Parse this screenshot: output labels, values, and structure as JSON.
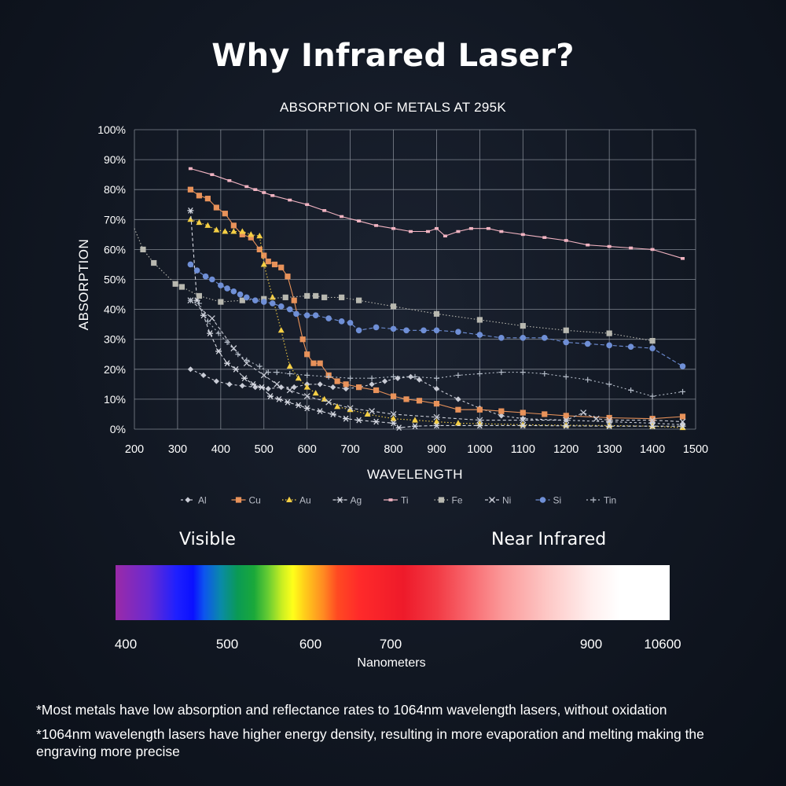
{
  "headline": "Why Infrared Laser?",
  "chart_data": {
    "type": "line",
    "title": "ABSORPTION OF METALS AT 295K",
    "xlabel": "WAVELENGTH",
    "ylabel": "ABSORPTION",
    "xlim": [
      200,
      1500
    ],
    "ylim": [
      0,
      100
    ],
    "xticks": [
      "200",
      "300",
      "400",
      "500",
      "600",
      "700",
      "800",
      "900",
      "1000",
      "1100",
      "1200",
      "1300",
      "1400",
      "1500"
    ],
    "yticks": [
      "0%",
      "10%",
      "20%",
      "30%",
      "40%",
      "50%",
      "60%",
      "70%",
      "80%",
      "90%",
      "100%"
    ],
    "grid": true,
    "legend_position": "bottom",
    "series": [
      {
        "name": "Al",
        "color": "#c9ccd6",
        "marker": "diamond",
        "dash": "3,3",
        "points": [
          [
            330,
            20
          ],
          [
            360,
            18
          ],
          [
            390,
            16
          ],
          [
            420,
            15
          ],
          [
            450,
            14.5
          ],
          [
            480,
            14
          ],
          [
            510,
            13.5
          ],
          [
            540,
            14
          ],
          [
            570,
            14
          ],
          [
            600,
            15
          ],
          [
            630,
            15
          ],
          [
            660,
            14
          ],
          [
            690,
            13.5
          ],
          [
            720,
            14
          ],
          [
            750,
            15
          ],
          [
            780,
            16
          ],
          [
            810,
            17
          ],
          [
            840,
            17.5
          ],
          [
            860,
            16.5
          ],
          [
            900,
            13.5
          ],
          [
            950,
            10
          ],
          [
            1000,
            7
          ],
          [
            1050,
            4.5
          ],
          [
            1100,
            3.5
          ],
          [
            1200,
            3
          ],
          [
            1300,
            2.5
          ],
          [
            1400,
            2
          ],
          [
            1470,
            1.5
          ]
        ]
      },
      {
        "name": "Cu",
        "color": "#e8925a",
        "marker": "square",
        "dash": "",
        "points": [
          [
            330,
            80
          ],
          [
            350,
            78
          ],
          [
            370,
            77
          ],
          [
            390,
            74
          ],
          [
            410,
            72
          ],
          [
            430,
            68
          ],
          [
            450,
            65
          ],
          [
            470,
            64
          ],
          [
            490,
            60
          ],
          [
            500,
            58
          ],
          [
            510,
            56
          ],
          [
            525,
            55
          ],
          [
            540,
            54
          ],
          [
            555,
            51
          ],
          [
            570,
            43
          ],
          [
            590,
            30
          ],
          [
            600,
            25
          ],
          [
            615,
            22
          ],
          [
            630,
            22
          ],
          [
            650,
            18
          ],
          [
            670,
            16
          ],
          [
            690,
            15
          ],
          [
            720,
            14
          ],
          [
            760,
            13
          ],
          [
            800,
            11
          ],
          [
            830,
            10
          ],
          [
            860,
            9.5
          ],
          [
            900,
            8.5
          ],
          [
            950,
            6.5
          ],
          [
            1000,
            6.5
          ],
          [
            1050,
            6
          ],
          [
            1100,
            5.5
          ],
          [
            1150,
            5
          ],
          [
            1200,
            4.5
          ],
          [
            1300,
            3.8
          ],
          [
            1400,
            3.5
          ],
          [
            1470,
            4.2
          ]
        ]
      },
      {
        "name": "Au",
        "color": "#f5cf45",
        "marker": "triangle",
        "dash": "1.5,2.5",
        "points": [
          [
            330,
            70
          ],
          [
            350,
            69
          ],
          [
            370,
            68
          ],
          [
            390,
            66.5
          ],
          [
            410,
            66
          ],
          [
            430,
            66
          ],
          [
            450,
            66
          ],
          [
            470,
            65
          ],
          [
            490,
            64.5
          ],
          [
            500,
            55
          ],
          [
            520,
            44
          ],
          [
            540,
            33
          ],
          [
            560,
            21
          ],
          [
            580,
            17
          ],
          [
            600,
            14
          ],
          [
            620,
            12
          ],
          [
            640,
            10
          ],
          [
            670,
            7.5
          ],
          [
            700,
            6.5
          ],
          [
            740,
            5
          ],
          [
            800,
            3.5
          ],
          [
            850,
            3
          ],
          [
            900,
            2.5
          ],
          [
            950,
            2
          ],
          [
            1000,
            1.8
          ],
          [
            1100,
            1.5
          ],
          [
            1200,
            1.3
          ],
          [
            1300,
            1.2
          ],
          [
            1400,
            1
          ],
          [
            1470,
            0.5
          ]
        ]
      },
      {
        "name": "Ag",
        "color": "#d6d9e2",
        "marker": "asterisk",
        "dash": "4,3",
        "points": [
          [
            330,
            73
          ],
          [
            345,
            43
          ],
          [
            360,
            38
          ],
          [
            375,
            32
          ],
          [
            395,
            26
          ],
          [
            415,
            22
          ],
          [
            435,
            20
          ],
          [
            455,
            17
          ],
          [
            475,
            15
          ],
          [
            495,
            14
          ],
          [
            515,
            11
          ],
          [
            535,
            10
          ],
          [
            555,
            9
          ],
          [
            580,
            8
          ],
          [
            600,
            7
          ],
          [
            630,
            6
          ],
          [
            660,
            5
          ],
          [
            690,
            3.5
          ],
          [
            720,
            3
          ],
          [
            760,
            2.5
          ],
          [
            800,
            2
          ],
          [
            813,
            0.5
          ],
          [
            850,
            1
          ],
          [
            900,
            1.2
          ],
          [
            1000,
            1.2
          ],
          [
            1100,
            1.2
          ],
          [
            1200,
            1.1
          ],
          [
            1300,
            1
          ],
          [
            1400,
            1
          ],
          [
            1470,
            1
          ]
        ]
      },
      {
        "name": "Ti",
        "color": "#f2b4c2",
        "marker": "smallsquare",
        "dash": "",
        "points": [
          [
            330,
            87
          ],
          [
            380,
            85
          ],
          [
            420,
            83
          ],
          [
            460,
            81
          ],
          [
            480,
            80
          ],
          [
            500,
            79
          ],
          [
            520,
            78
          ],
          [
            560,
            76.5
          ],
          [
            600,
            75
          ],
          [
            640,
            73
          ],
          [
            680,
            71
          ],
          [
            720,
            69.5
          ],
          [
            760,
            68
          ],
          [
            800,
            67
          ],
          [
            840,
            66
          ],
          [
            880,
            66
          ],
          [
            900,
            67
          ],
          [
            920,
            64.5
          ],
          [
            950,
            66
          ],
          [
            980,
            67
          ],
          [
            1020,
            67
          ],
          [
            1050,
            66
          ],
          [
            1100,
            65
          ],
          [
            1150,
            64
          ],
          [
            1200,
            63
          ],
          [
            1250,
            61.5
          ],
          [
            1300,
            61
          ],
          [
            1350,
            60.5
          ],
          [
            1400,
            60
          ],
          [
            1470,
            57
          ]
        ]
      },
      {
        "name": "Fe",
        "color": "#b8b8b0",
        "marker": "square",
        "dash": "1.5,2.5",
        "points": [
          [
            200,
            67
          ],
          [
            220,
            60
          ],
          [
            245,
            55.5
          ],
          [
            295,
            48.5
          ],
          [
            310,
            47.5
          ],
          [
            350,
            44.5
          ],
          [
            400,
            42.5
          ],
          [
            450,
            43
          ],
          [
            500,
            43.5
          ],
          [
            550,
            44
          ],
          [
            600,
            44.5
          ],
          [
            620,
            44.5
          ],
          [
            640,
            44
          ],
          [
            680,
            44
          ],
          [
            720,
            43
          ],
          [
            800,
            41
          ],
          [
            900,
            38.5
          ],
          [
            1000,
            36.5
          ],
          [
            1100,
            34.5
          ],
          [
            1200,
            33
          ],
          [
            1300,
            32
          ],
          [
            1400,
            29.5
          ]
        ]
      },
      {
        "name": "Ni",
        "color": "#c9ccd6",
        "marker": "cross",
        "dash": "4,3",
        "points": [
          [
            330,
            43
          ],
          [
            380,
            37
          ],
          [
            430,
            27
          ],
          [
            460,
            22
          ],
          [
            500,
            18
          ],
          [
            530,
            15
          ],
          [
            560,
            13
          ],
          [
            600,
            11
          ],
          [
            650,
            9
          ],
          [
            700,
            7
          ],
          [
            750,
            6
          ],
          [
            800,
            5
          ],
          [
            900,
            4
          ],
          [
            1000,
            3
          ],
          [
            1100,
            3
          ],
          [
            1200,
            3
          ],
          [
            1240,
            5.5
          ],
          [
            1270,
            3.5
          ],
          [
            1300,
            3
          ],
          [
            1400,
            3
          ],
          [
            1470,
            2.5
          ]
        ]
      },
      {
        "name": "Si",
        "color": "#6f8fd6",
        "marker": "circle",
        "dash": "5,3",
        "points": [
          [
            330,
            55
          ],
          [
            345,
            53
          ],
          [
            365,
            51
          ],
          [
            380,
            50
          ],
          [
            400,
            48
          ],
          [
            415,
            47
          ],
          [
            430,
            46
          ],
          [
            445,
            45
          ],
          [
            460,
            44
          ],
          [
            480,
            43
          ],
          [
            500,
            42.5
          ],
          [
            520,
            42
          ],
          [
            540,
            41
          ],
          [
            560,
            40
          ],
          [
            575,
            38.5
          ],
          [
            600,
            38
          ],
          [
            620,
            38
          ],
          [
            650,
            37
          ],
          [
            680,
            36
          ],
          [
            700,
            35.5
          ],
          [
            720,
            33
          ],
          [
            760,
            34
          ],
          [
            800,
            33.5
          ],
          [
            830,
            33
          ],
          [
            870,
            33
          ],
          [
            900,
            33
          ],
          [
            950,
            32.5
          ],
          [
            1000,
            31.5
          ],
          [
            1050,
            30.5
          ],
          [
            1100,
            30.5
          ],
          [
            1150,
            30.5
          ],
          [
            1200,
            29
          ],
          [
            1250,
            28.5
          ],
          [
            1300,
            28
          ],
          [
            1350,
            27.5
          ],
          [
            1400,
            27
          ],
          [
            1470,
            21
          ]
        ]
      },
      {
        "name": "Tin",
        "color": "#b4bcc8",
        "marker": "plus",
        "dash": "2,3",
        "points": [
          [
            330,
            43
          ],
          [
            350,
            42
          ],
          [
            370,
            36
          ],
          [
            395,
            32
          ],
          [
            415,
            29
          ],
          [
            440,
            25
          ],
          [
            460,
            23
          ],
          [
            490,
            21
          ],
          [
            510,
            19
          ],
          [
            530,
            19
          ],
          [
            560,
            18.5
          ],
          [
            600,
            18
          ],
          [
            650,
            17.5
          ],
          [
            700,
            17
          ],
          [
            750,
            17
          ],
          [
            800,
            17.5
          ],
          [
            850,
            17.5
          ],
          [
            900,
            17
          ],
          [
            950,
            18
          ],
          [
            1000,
            18.5
          ],
          [
            1050,
            19
          ],
          [
            1100,
            19
          ],
          [
            1150,
            18.5
          ],
          [
            1200,
            17.5
          ],
          [
            1250,
            16.5
          ],
          [
            1300,
            15
          ],
          [
            1350,
            13
          ],
          [
            1400,
            11
          ],
          [
            1470,
            12.5
          ]
        ]
      }
    ]
  },
  "spectrum": {
    "left_label": "Visible",
    "right_label": "Near Infrared",
    "tick_labels": [
      "400",
      "500",
      "600",
      "700",
      "900",
      "10600"
    ],
    "unit_label": "Nanometers"
  },
  "notes": [
    "*Most metals have low absorption and reflectance rates to 1064nm wavelength lasers, without oxidation",
    "*1064nm wavelength lasers have higher energy density, resulting in more evaporation and melting making the engraving more precise"
  ]
}
